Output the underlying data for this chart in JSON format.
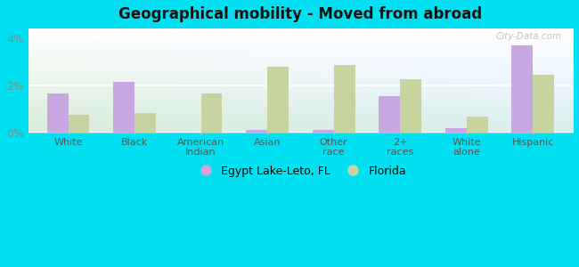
{
  "title": "Geographical mobility - Moved from abroad",
  "categories": [
    "White",
    "Black",
    "American\nIndian",
    "Asian",
    "Other\nrace",
    "2+\nraces",
    "White\nalone",
    "Hispanic"
  ],
  "egypt_values": [
    1.65,
    2.15,
    0.0,
    0.12,
    0.13,
    1.55,
    0.18,
    3.7
  ],
  "florida_values": [
    0.75,
    0.85,
    1.65,
    2.8,
    2.85,
    2.25,
    0.7,
    2.45
  ],
  "egypt_color": "#c8a8e0",
  "florida_color": "#c8d4a0",
  "background_outer": "#00e0f0",
  "ylim": [
    0,
    4.4
  ],
  "yticks": [
    0,
    2,
    4
  ],
  "ytick_labels": [
    "0%",
    "2%",
    "4%"
  ],
  "legend_egypt": "Egypt Lake-Leto, FL",
  "legend_florida": "Florida",
  "bar_width": 0.32,
  "watermark": "City-Data.com"
}
